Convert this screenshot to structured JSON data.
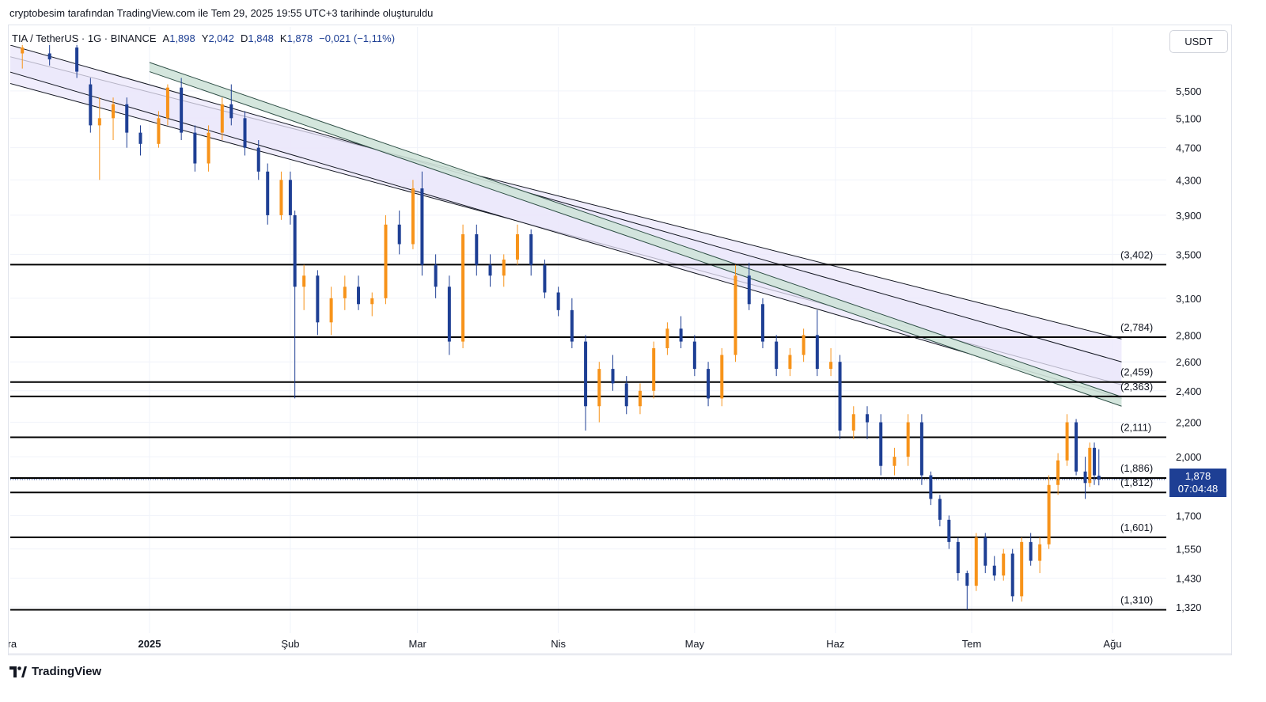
{
  "caption": "cryptobesim tarafından TradingView.com ile Tem 29, 2025 19:55 UTC+3 tarihinde oluşturuldu",
  "legend": {
    "symbol": "TIA / TetherUS · 1G · BINANCE",
    "open_label": "A",
    "open": "1,898",
    "high_label": "Y",
    "high": "2,042",
    "low_label": "D",
    "low": "1,848",
    "close_label": "K",
    "close": "1,878",
    "change": "−0,021 (−1,11%)"
  },
  "currency_badge": "USDT",
  "last_price": {
    "value": "1,878",
    "countdown": "07:04:48"
  },
  "brand": "TradingView",
  "colors": {
    "up_candle": "#f7931a",
    "down_candle": "#1e3f94",
    "level_line": "#000000",
    "channel_fill": "#ebe7fb",
    "green_band": "#cfe3d9",
    "accent": "#1e3f94"
  },
  "chart_data": {
    "type": "candlestick",
    "scale": "log",
    "y_axis_ticks": [
      "5,500",
      "5,100",
      "4,700",
      "4,300",
      "3,900",
      "3,500",
      "3,100",
      "2,800",
      "2,600",
      "2,400",
      "2,200",
      "2,000",
      "1,700",
      "1,550",
      "1,430",
      "1,320"
    ],
    "y_tick_values": [
      5.5,
      5.1,
      4.7,
      4.3,
      3.9,
      3.5,
      3.1,
      2.8,
      2.6,
      2.4,
      2.2,
      2.0,
      1.7,
      1.55,
      1.43,
      1.32
    ],
    "x_axis_ticks": [
      {
        "label": "Ara",
        "date": "2024-12-01",
        "bold": false
      },
      {
        "label": "2025",
        "date": "2025-01-01",
        "bold": true
      },
      {
        "label": "Şub",
        "date": "2025-02-01",
        "bold": false
      },
      {
        "label": "Mar",
        "date": "2025-03-01",
        "bold": false
      },
      {
        "label": "Nis",
        "date": "2025-04-01",
        "bold": false
      },
      {
        "label": "May",
        "date": "2025-05-01",
        "bold": false
      },
      {
        "label": "Haz",
        "date": "2025-06-01",
        "bold": false
      },
      {
        "label": "Tem",
        "date": "2025-07-01",
        "bold": false
      },
      {
        "label": "Ağu",
        "date": "2025-08-01",
        "bold": false
      }
    ],
    "horizontal_levels": [
      {
        "label": "(3,402)",
        "value": 3.402
      },
      {
        "label": "(2,784)",
        "value": 2.784
      },
      {
        "label": "(2,459)",
        "value": 2.459
      },
      {
        "label": "(2,363)",
        "value": 2.363
      },
      {
        "label": "(2,111)",
        "value": 2.111
      },
      {
        "label": "(1,886)",
        "value": 1.886
      },
      {
        "label": "(1,812)",
        "value": 1.812
      },
      {
        "label": "(1,601)",
        "value": 1.601
      },
      {
        "label": "(1,310)",
        "value": 1.31
      }
    ],
    "last_close": 1.878,
    "trend_channels": [
      {
        "kind": "purple-channel",
        "lines": [
          {
            "from": [
              "2024-12-01",
              6.05
            ],
            "to": [
              "2025-08-03",
              2.77
            ]
          },
          {
            "from": [
              "2024-12-01",
              5.62
            ],
            "to": [
              "2025-08-03",
              2.44
            ]
          }
        ]
      },
      {
        "kind": "purple-channel",
        "lines": [
          {
            "from": [
              "2024-12-01",
              6.25
            ],
            "to": [
              "2025-08-03",
              2.6
            ]
          },
          {
            "from": [
              "2024-12-01",
              5.8
            ],
            "to": [
              "2025-08-03",
              2.35
            ]
          }
        ]
      },
      {
        "kind": "green-band",
        "lines": [
          {
            "from": [
              "2025-01-01",
              5.95
            ],
            "to": [
              "2025-08-03",
              2.36
            ]
          },
          {
            "from": [
              "2025-01-01",
              5.8
            ],
            "to": [
              "2025-08-03",
              2.3
            ]
          }
        ]
      }
    ],
    "candles": [
      {
        "date": "2024-12-04",
        "o": 6.1,
        "h": 6.4,
        "l": 5.85,
        "c": 6.2
      },
      {
        "date": "2024-12-10",
        "o": 6.1,
        "h": 6.3,
        "l": 5.9,
        "c": 6.0
      },
      {
        "date": "2024-12-16",
        "o": 6.2,
        "h": 6.3,
        "l": 5.7,
        "c": 5.8
      },
      {
        "date": "2024-12-19",
        "o": 5.6,
        "h": 5.7,
        "l": 4.9,
        "c": 5.0
      },
      {
        "date": "2024-12-21",
        "o": 5.0,
        "h": 5.4,
        "l": 4.3,
        "c": 5.1
      },
      {
        "date": "2024-12-24",
        "o": 5.1,
        "h": 5.4,
        "l": 4.8,
        "c": 5.3
      },
      {
        "date": "2024-12-27",
        "o": 5.3,
        "h": 5.4,
        "l": 4.7,
        "c": 4.9
      },
      {
        "date": "2024-12-30",
        "o": 4.9,
        "h": 5.0,
        "l": 4.6,
        "c": 4.75
      },
      {
        "date": "2025-01-03",
        "o": 4.75,
        "h": 5.2,
        "l": 4.7,
        "c": 5.1
      },
      {
        "date": "2025-01-05",
        "o": 5.1,
        "h": 5.6,
        "l": 5.0,
        "c": 5.55
      },
      {
        "date": "2025-01-08",
        "o": 5.55,
        "h": 5.7,
        "l": 4.8,
        "c": 4.9
      },
      {
        "date": "2025-01-11",
        "o": 4.9,
        "h": 5.0,
        "l": 4.4,
        "c": 4.5
      },
      {
        "date": "2025-01-14",
        "o": 4.5,
        "h": 5.0,
        "l": 4.4,
        "c": 4.9
      },
      {
        "date": "2025-01-17",
        "o": 4.9,
        "h": 5.4,
        "l": 4.8,
        "c": 5.3
      },
      {
        "date": "2025-01-19",
        "o": 5.3,
        "h": 5.6,
        "l": 5.0,
        "c": 5.1
      },
      {
        "date": "2025-01-22",
        "o": 5.1,
        "h": 5.2,
        "l": 4.6,
        "c": 4.7
      },
      {
        "date": "2025-01-25",
        "o": 4.7,
        "h": 4.8,
        "l": 4.3,
        "c": 4.4
      },
      {
        "date": "2025-01-27",
        "o": 4.4,
        "h": 4.5,
        "l": 3.8,
        "c": 3.9
      },
      {
        "date": "2025-01-30",
        "o": 3.9,
        "h": 4.4,
        "l": 3.85,
        "c": 4.3
      },
      {
        "date": "2025-02-01",
        "o": 4.3,
        "h": 4.4,
        "l": 3.8,
        "c": 3.9
      },
      {
        "date": "2025-02-02",
        "o": 3.9,
        "h": 3.95,
        "l": 2.35,
        "c": 3.2
      },
      {
        "date": "2025-02-04",
        "o": 3.2,
        "h": 3.4,
        "l": 3.0,
        "c": 3.3
      },
      {
        "date": "2025-02-07",
        "o": 3.3,
        "h": 3.35,
        "l": 2.8,
        "c": 2.9
      },
      {
        "date": "2025-02-10",
        "o": 2.9,
        "h": 3.2,
        "l": 2.8,
        "c": 3.1
      },
      {
        "date": "2025-02-13",
        "o": 3.1,
        "h": 3.3,
        "l": 3.0,
        "c": 3.2
      },
      {
        "date": "2025-02-16",
        "o": 3.2,
        "h": 3.3,
        "l": 3.0,
        "c": 3.05
      },
      {
        "date": "2025-02-19",
        "o": 3.05,
        "h": 3.15,
        "l": 2.95,
        "c": 3.1
      },
      {
        "date": "2025-02-22",
        "o": 3.1,
        "h": 3.9,
        "l": 3.05,
        "c": 3.8
      },
      {
        "date": "2025-02-25",
        "o": 3.8,
        "h": 3.95,
        "l": 3.5,
        "c": 3.6
      },
      {
        "date": "2025-02-28",
        "o": 3.6,
        "h": 4.3,
        "l": 3.55,
        "c": 4.2
      },
      {
        "date": "2025-03-02",
        "o": 4.2,
        "h": 4.4,
        "l": 3.3,
        "c": 3.4
      },
      {
        "date": "2025-03-05",
        "o": 3.4,
        "h": 3.5,
        "l": 3.1,
        "c": 3.2
      },
      {
        "date": "2025-03-08",
        "o": 3.2,
        "h": 3.3,
        "l": 2.65,
        "c": 2.75
      },
      {
        "date": "2025-03-11",
        "o": 2.75,
        "h": 3.8,
        "l": 2.7,
        "c": 3.7
      },
      {
        "date": "2025-03-14",
        "o": 3.7,
        "h": 3.8,
        "l": 3.3,
        "c": 3.4
      },
      {
        "date": "2025-03-17",
        "o": 3.4,
        "h": 3.5,
        "l": 3.2,
        "c": 3.3
      },
      {
        "date": "2025-03-20",
        "o": 3.3,
        "h": 3.5,
        "l": 3.2,
        "c": 3.45
      },
      {
        "date": "2025-03-23",
        "o": 3.45,
        "h": 3.8,
        "l": 3.4,
        "c": 3.7
      },
      {
        "date": "2025-03-26",
        "o": 3.7,
        "h": 3.75,
        "l": 3.3,
        "c": 3.4
      },
      {
        "date": "2025-03-29",
        "o": 3.4,
        "h": 3.45,
        "l": 3.1,
        "c": 3.15
      },
      {
        "date": "2025-04-01",
        "o": 3.15,
        "h": 3.2,
        "l": 2.95,
        "c": 3.0
      },
      {
        "date": "2025-04-04",
        "o": 3.0,
        "h": 3.1,
        "l": 2.7,
        "c": 2.75
      },
      {
        "date": "2025-04-07",
        "o": 2.75,
        "h": 2.8,
        "l": 2.15,
        "c": 2.3
      },
      {
        "date": "2025-04-10",
        "o": 2.3,
        "h": 2.6,
        "l": 2.2,
        "c": 2.55
      },
      {
        "date": "2025-04-13",
        "o": 2.55,
        "h": 2.65,
        "l": 2.4,
        "c": 2.45
      },
      {
        "date": "2025-04-16",
        "o": 2.45,
        "h": 2.5,
        "l": 2.25,
        "c": 2.3
      },
      {
        "date": "2025-04-19",
        "o": 2.3,
        "h": 2.45,
        "l": 2.25,
        "c": 2.4
      },
      {
        "date": "2025-04-22",
        "o": 2.4,
        "h": 2.75,
        "l": 2.35,
        "c": 2.7
      },
      {
        "date": "2025-04-25",
        "o": 2.7,
        "h": 2.9,
        "l": 2.65,
        "c": 2.85
      },
      {
        "date": "2025-04-28",
        "o": 2.85,
        "h": 2.95,
        "l": 2.7,
        "c": 2.75
      },
      {
        "date": "2025-05-01",
        "o": 2.75,
        "h": 2.8,
        "l": 2.5,
        "c": 2.55
      },
      {
        "date": "2025-05-04",
        "o": 2.55,
        "h": 2.6,
        "l": 2.3,
        "c": 2.35
      },
      {
        "date": "2025-05-07",
        "o": 2.35,
        "h": 2.7,
        "l": 2.3,
        "c": 2.65
      },
      {
        "date": "2025-05-10",
        "o": 2.65,
        "h": 3.4,
        "l": 2.6,
        "c": 3.3
      },
      {
        "date": "2025-05-13",
        "o": 3.3,
        "h": 3.42,
        "l": 3.0,
        "c": 3.05
      },
      {
        "date": "2025-05-16",
        "o": 3.05,
        "h": 3.1,
        "l": 2.7,
        "c": 2.75
      },
      {
        "date": "2025-05-19",
        "o": 2.75,
        "h": 2.8,
        "l": 2.5,
        "c": 2.55
      },
      {
        "date": "2025-05-22",
        "o": 2.55,
        "h": 2.7,
        "l": 2.5,
        "c": 2.65
      },
      {
        "date": "2025-05-25",
        "o": 2.65,
        "h": 2.85,
        "l": 2.6,
        "c": 2.8
      },
      {
        "date": "2025-05-28",
        "o": 2.8,
        "h": 3.0,
        "l": 2.5,
        "c": 2.55
      },
      {
        "date": "2025-05-31",
        "o": 2.55,
        "h": 2.7,
        "l": 2.5,
        "c": 2.6
      },
      {
        "date": "2025-06-02",
        "o": 2.6,
        "h": 2.65,
        "l": 2.1,
        "c": 2.15
      },
      {
        "date": "2025-06-05",
        "o": 2.15,
        "h": 2.3,
        "l": 2.1,
        "c": 2.25
      },
      {
        "date": "2025-06-08",
        "o": 2.25,
        "h": 2.3,
        "l": 2.1,
        "c": 2.2
      },
      {
        "date": "2025-06-11",
        "o": 2.2,
        "h": 2.25,
        "l": 1.9,
        "c": 1.95
      },
      {
        "date": "2025-06-14",
        "o": 1.95,
        "h": 2.05,
        "l": 1.9,
        "c": 2.0
      },
      {
        "date": "2025-06-17",
        "o": 2.0,
        "h": 2.25,
        "l": 1.95,
        "c": 2.2
      },
      {
        "date": "2025-06-20",
        "o": 2.2,
        "h": 2.25,
        "l": 1.85,
        "c": 1.9
      },
      {
        "date": "2025-06-22",
        "o": 1.9,
        "h": 1.92,
        "l": 1.75,
        "c": 1.78
      },
      {
        "date": "2025-06-24",
        "o": 1.78,
        "h": 1.8,
        "l": 1.65,
        "c": 1.68
      },
      {
        "date": "2025-06-26",
        "o": 1.68,
        "h": 1.7,
        "l": 1.55,
        "c": 1.58
      },
      {
        "date": "2025-06-28",
        "o": 1.58,
        "h": 1.6,
        "l": 1.42,
        "c": 1.45
      },
      {
        "date": "2025-06-30",
        "o": 1.45,
        "h": 1.46,
        "l": 1.31,
        "c": 1.4
      },
      {
        "date": "2025-07-02",
        "o": 1.4,
        "h": 1.62,
        "l": 1.38,
        "c": 1.6
      },
      {
        "date": "2025-07-04",
        "o": 1.6,
        "h": 1.62,
        "l": 1.45,
        "c": 1.48
      },
      {
        "date": "2025-07-06",
        "o": 1.48,
        "h": 1.52,
        "l": 1.42,
        "c": 1.44
      },
      {
        "date": "2025-07-08",
        "o": 1.44,
        "h": 1.55,
        "l": 1.42,
        "c": 1.53
      },
      {
        "date": "2025-07-10",
        "o": 1.53,
        "h": 1.55,
        "l": 1.34,
        "c": 1.36
      },
      {
        "date": "2025-07-12",
        "o": 1.36,
        "h": 1.6,
        "l": 1.34,
        "c": 1.58
      },
      {
        "date": "2025-07-14",
        "o": 1.58,
        "h": 1.62,
        "l": 1.48,
        "c": 1.5
      },
      {
        "date": "2025-07-16",
        "o": 1.5,
        "h": 1.6,
        "l": 1.45,
        "c": 1.57
      },
      {
        "date": "2025-07-18",
        "o": 1.57,
        "h": 1.9,
        "l": 1.55,
        "c": 1.85
      },
      {
        "date": "2025-07-20",
        "o": 1.85,
        "h": 2.02,
        "l": 1.8,
        "c": 1.98
      },
      {
        "date": "2025-07-22",
        "o": 1.98,
        "h": 2.25,
        "l": 1.95,
        "c": 2.2
      },
      {
        "date": "2025-07-24",
        "o": 2.2,
        "h": 2.22,
        "l": 1.9,
        "c": 1.92
      },
      {
        "date": "2025-07-26",
        "o": 1.92,
        "h": 2.0,
        "l": 1.78,
        "c": 1.86
      },
      {
        "date": "2025-07-27",
        "o": 1.86,
        "h": 2.08,
        "l": 1.84,
        "c": 2.05
      },
      {
        "date": "2025-07-28",
        "o": 2.05,
        "h": 2.08,
        "l": 1.85,
        "c": 1.9
      },
      {
        "date": "2025-07-29",
        "o": 1.898,
        "h": 2.042,
        "l": 1.848,
        "c": 1.878
      }
    ]
  }
}
